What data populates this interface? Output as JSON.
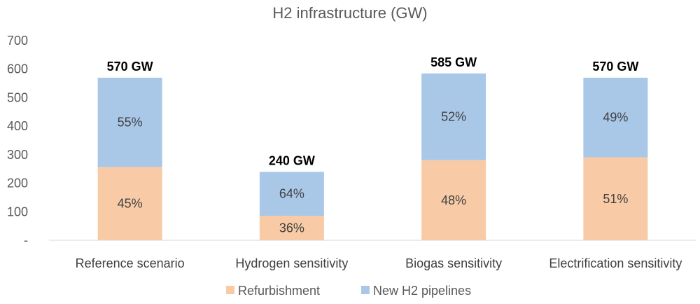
{
  "chart_data": {
    "type": "bar",
    "stacked": true,
    "title": "H2 infrastructure (GW)",
    "xlabel": "",
    "ylabel": "",
    "ylim": [
      0,
      700
    ],
    "yticks": [
      0,
      100,
      200,
      300,
      400,
      500,
      600,
      700
    ],
    "ytick_labels": [
      "-",
      "100",
      "200",
      "300",
      "400",
      "500",
      "600",
      "700"
    ],
    "grid": false,
    "legend_position": "bottom",
    "categories": [
      "Reference scenario",
      "Hydrogen sensitivity",
      "Biogas sensitivity",
      "Electrification sensitivity"
    ],
    "totals": [
      570,
      240,
      585,
      570
    ],
    "total_labels": [
      "570 GW",
      "240 GW",
      "585 GW",
      "570 GW"
    ],
    "series": [
      {
        "name": "Refurbishment",
        "color": "#f8cba6",
        "values": [
          257,
          86,
          281,
          291
        ],
        "labels": [
          "45%",
          "36%",
          "48%",
          "51%"
        ]
      },
      {
        "name": "New H2 pipelines",
        "color": "#a9c8e8",
        "values": [
          313,
          154,
          304,
          279
        ],
        "labels": [
          "55%",
          "64%",
          "52%",
          "49%"
        ]
      }
    ]
  }
}
